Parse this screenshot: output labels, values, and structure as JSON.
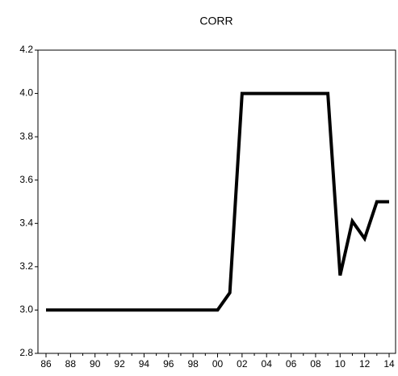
{
  "chart_data": {
    "type": "line",
    "title": "CORR",
    "categories": [
      "86",
      null,
      "88",
      null,
      "90",
      null,
      "92",
      null,
      "94",
      null,
      "96",
      null,
      "98",
      null,
      "00",
      null,
      "02",
      null,
      "04",
      null,
      "06",
      null,
      "08",
      null,
      "10",
      null,
      "12",
      null,
      "14"
    ],
    "series": [
      {
        "color": "#000000",
        "values": [
          3.0,
          3.0,
          3.0,
          3.0,
          3.0,
          3.0,
          3.0,
          3.0,
          3.0,
          3.0,
          3.0,
          3.0,
          3.0,
          3.0,
          3.0,
          3.08,
          4.0,
          4.0,
          4.0,
          4.0,
          4.0,
          4.0,
          4.0,
          4.0,
          3.16,
          3.41,
          3.33,
          3.5,
          3.5
        ]
      }
    ],
    "ylim": [
      2.8,
      4.2
    ],
    "yticks": [
      2.8,
      {
        "value": 3.0,
        "label": "3.0"
      },
      3.2,
      3.4,
      3.6,
      3.8,
      {
        "value": 4.0,
        "label": "4.0"
      },
      4.2
    ],
    "grid": false
  }
}
